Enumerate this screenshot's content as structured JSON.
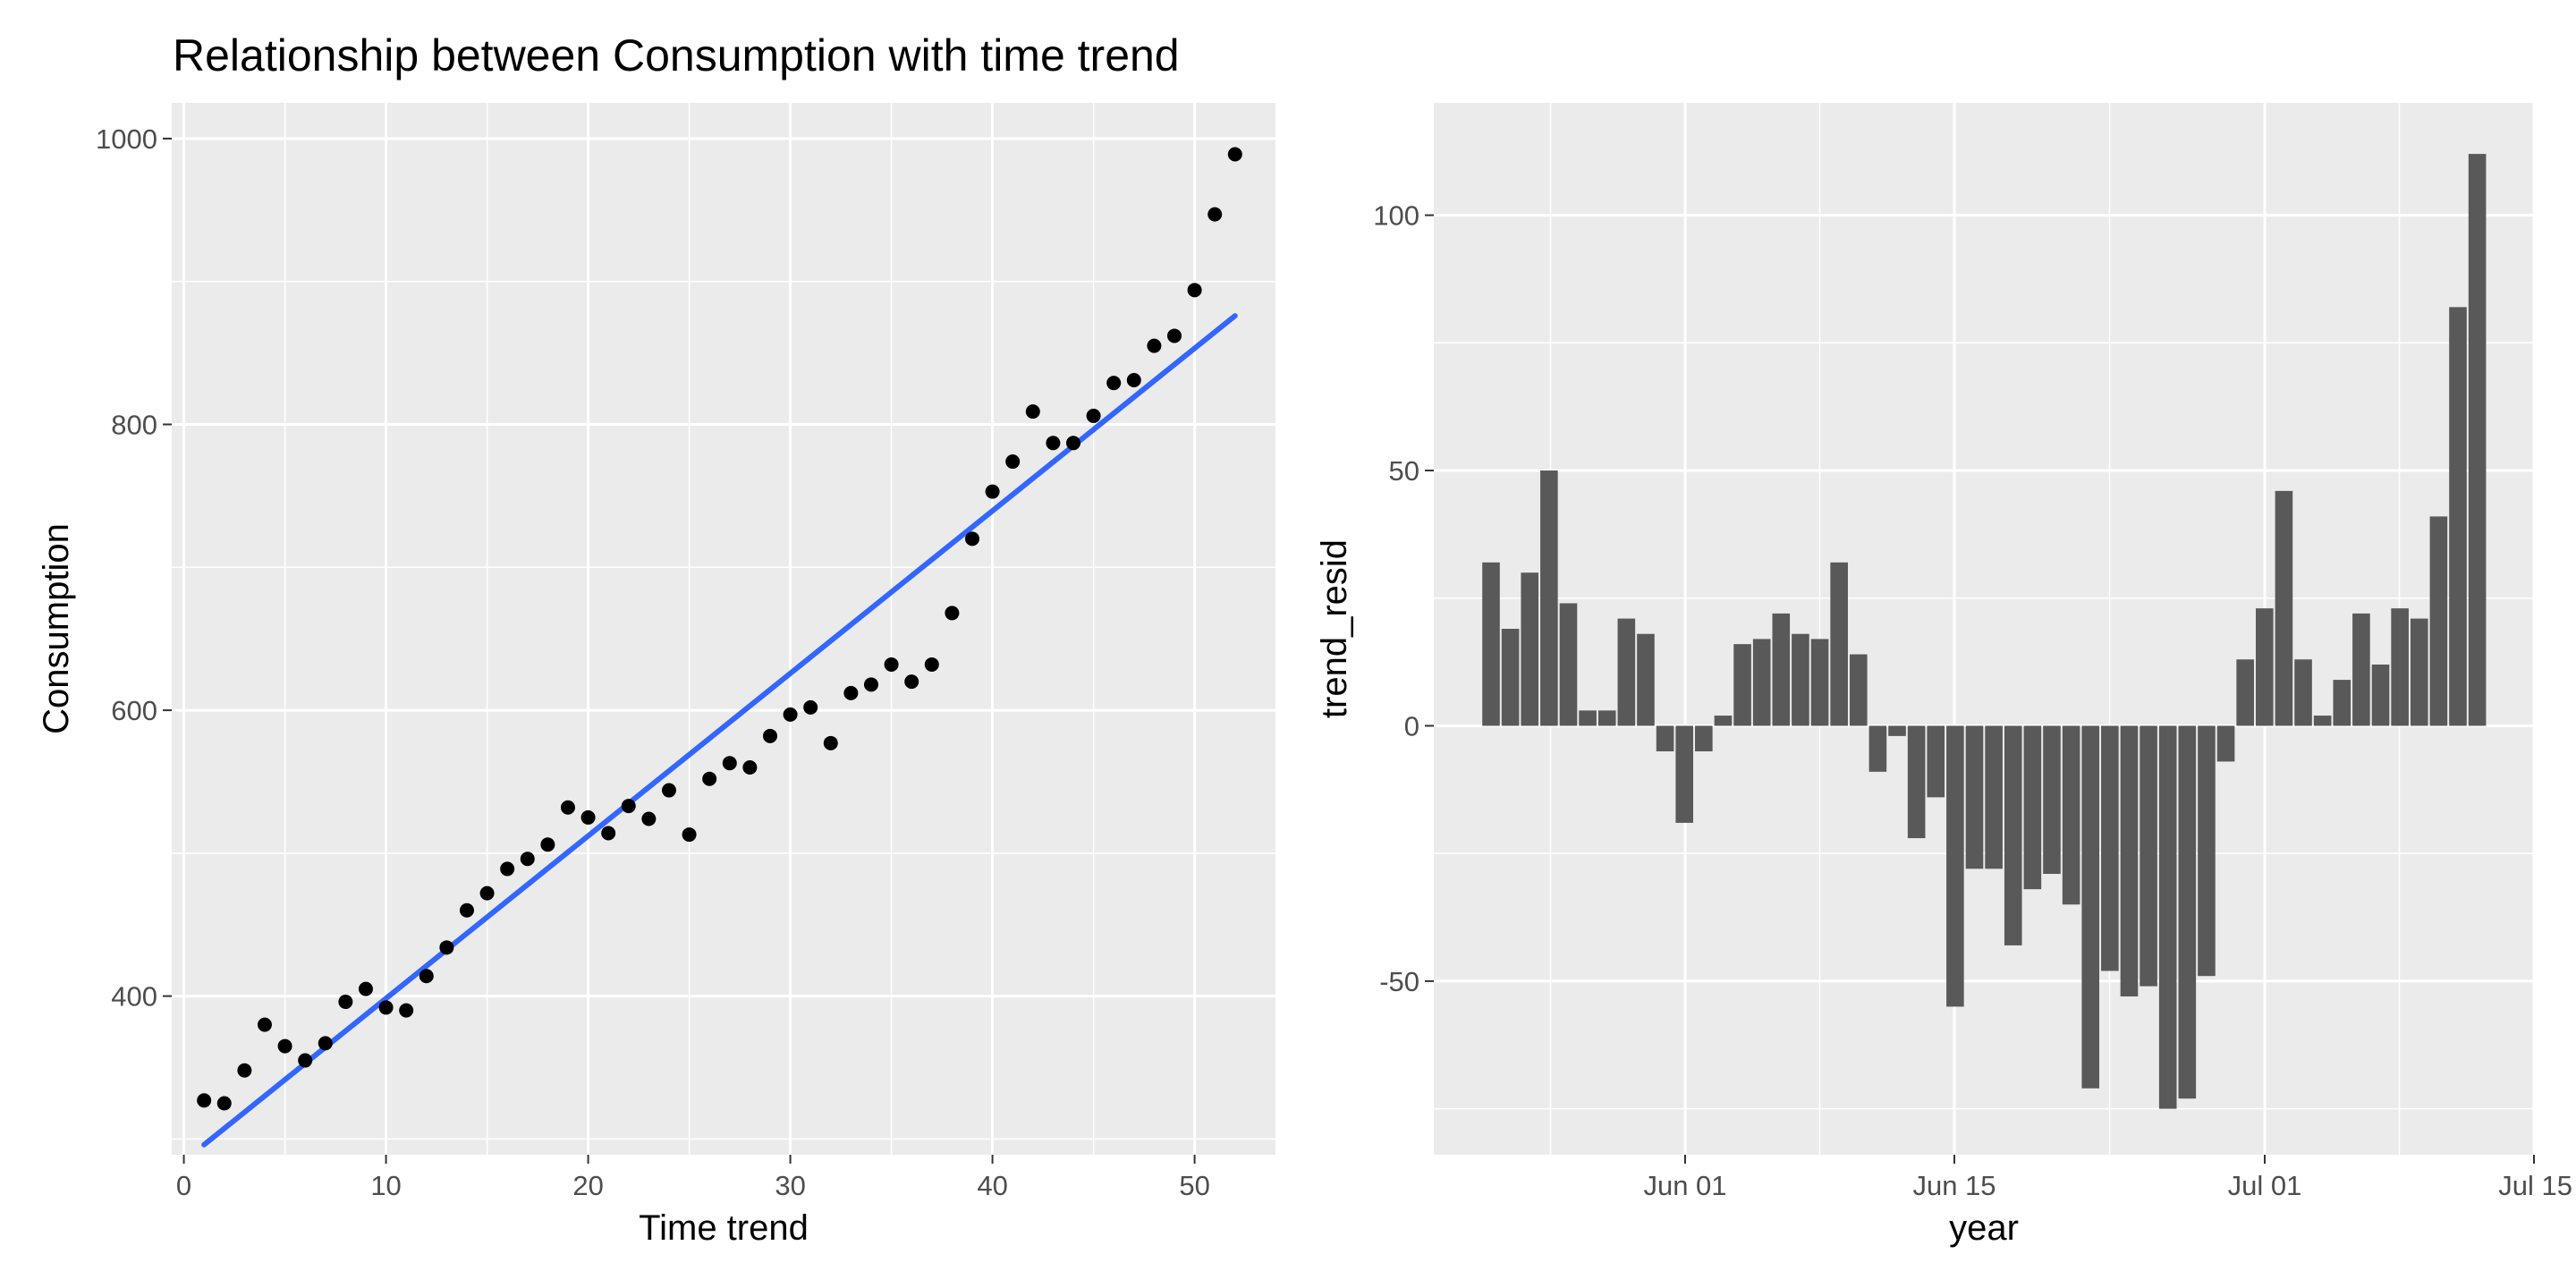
{
  "chart_data": [
    {
      "type": "scatter",
      "title": "Relationship between Consumption with time trend",
      "xlabel": "Time trend",
      "ylabel": "Consumption",
      "xlim": [
        -0.6,
        54.0
      ],
      "ylim": [
        289,
        1025
      ],
      "x_ticks": [
        0,
        10,
        20,
        30,
        40,
        50
      ],
      "y_ticks": [
        400,
        600,
        800,
        1000
      ],
      "grid": true,
      "legend": "none",
      "colors": {
        "points": "#000000",
        "trend_line": "#3366ff",
        "panel_bg": "#ebebeb",
        "grid": "#ffffff"
      },
      "trend_line": {
        "x": [
          1,
          52
        ],
        "y": [
          296,
          876
        ]
      },
      "points": [
        [
          1,
          327
        ],
        [
          2,
          325
        ],
        [
          3,
          348
        ],
        [
          4,
          380
        ],
        [
          5,
          365
        ],
        [
          6,
          355
        ],
        [
          7,
          367
        ],
        [
          8,
          396
        ],
        [
          9,
          405
        ],
        [
          10,
          392
        ],
        [
          11,
          390
        ],
        [
          12,
          414
        ],
        [
          13,
          434
        ],
        [
          14,
          460
        ],
        [
          15,
          472
        ],
        [
          16,
          489
        ],
        [
          17,
          496
        ],
        [
          18,
          506
        ],
        [
          19,
          532
        ],
        [
          20,
          525
        ],
        [
          21,
          514
        ],
        [
          22,
          533
        ],
        [
          23,
          524
        ],
        [
          24,
          544
        ],
        [
          25,
          513
        ],
        [
          26,
          552
        ],
        [
          27,
          563
        ],
        [
          28,
          560
        ],
        [
          29,
          582
        ],
        [
          30,
          597
        ],
        [
          31,
          602
        ],
        [
          32,
          577
        ],
        [
          33,
          612
        ],
        [
          34,
          618
        ],
        [
          35,
          632
        ],
        [
          36,
          620
        ],
        [
          37,
          632
        ],
        [
          38,
          668
        ],
        [
          39,
          720
        ],
        [
          40,
          753
        ],
        [
          41,
          774
        ],
        [
          42,
          809
        ],
        [
          43,
          787
        ],
        [
          44,
          787
        ],
        [
          45,
          806
        ],
        [
          46,
          829
        ],
        [
          47,
          831
        ],
        [
          48,
          855
        ],
        [
          49,
          862
        ],
        [
          50,
          894
        ],
        [
          51,
          947
        ],
        [
          52,
          989
        ]
      ]
    },
    {
      "type": "bar",
      "title": "",
      "xlabel": "year",
      "ylabel": "trend_resid",
      "x_ticks": [
        "Jun 01",
        "Jun 15",
        "Jul 01",
        "Jul 15"
      ],
      "y_ticks": [
        -50,
        0,
        50,
        100
      ],
      "ylim": [
        -84,
        122
      ],
      "grid": true,
      "legend": "none",
      "colors": {
        "bars": "#595959",
        "panel_bg": "#ebebeb",
        "grid": "#ffffff"
      },
      "values": [
        32,
        19,
        30,
        50,
        24,
        3,
        3,
        21,
        18,
        -5,
        -19,
        -5,
        2,
        16,
        17,
        22,
        18,
        17,
        32,
        14,
        -9,
        -2,
        -22,
        -14,
        -55,
        -28,
        -28,
        -43,
        -32,
        -29,
        -35,
        -71,
        -48,
        -53,
        -51,
        -75,
        -73,
        -49,
        -7,
        13,
        23,
        46,
        13,
        2,
        9,
        22,
        12,
        23,
        21,
        41,
        82,
        112
      ]
    }
  ]
}
